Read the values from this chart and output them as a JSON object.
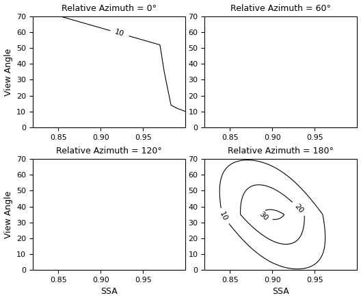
{
  "titles": [
    "Relative Azimuth = 0°",
    "Relative Azimuth = 60°",
    "Relative Azimuth = 120°",
    "Relative Azimuth = 180°"
  ],
  "xlabel": "SSA",
  "ylabel": "View Angle",
  "xlim": [
    0.82,
    1.0
  ],
  "ylim": [
    0,
    70
  ],
  "xticks": [
    0.85,
    0.9,
    0.95
  ],
  "yticks": [
    0,
    10,
    20,
    30,
    40,
    50,
    60,
    70
  ],
  "background_color": "#ffffff",
  "line_color": "black",
  "fontsize_title": 9,
  "fontsize_label": 9,
  "fontsize_tick": 8
}
